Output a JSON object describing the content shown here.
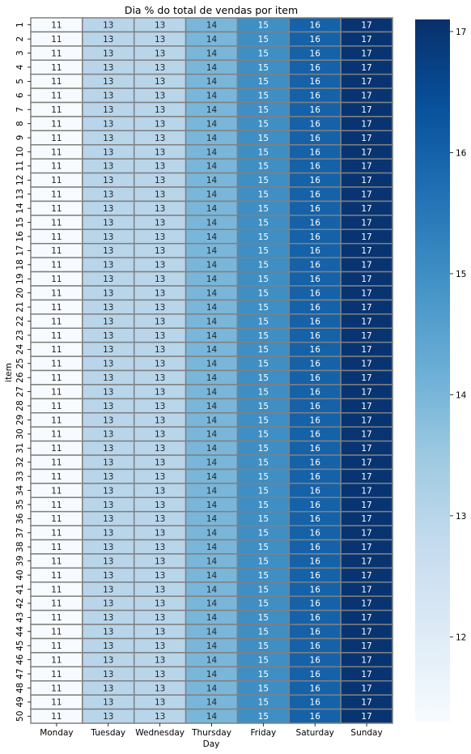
{
  "chart_data": {
    "type": "heatmap",
    "title": "Dia % do total de vendas por item",
    "xlabel": "Day",
    "ylabel": "item",
    "x_categories": [
      "Monday",
      "Tuesday",
      "Wednesday",
      "Thursday",
      "Friday",
      "Saturday",
      "Sunday"
    ],
    "y_categories": [
      "1",
      "2",
      "3",
      "4",
      "5",
      "6",
      "7",
      "8",
      "9",
      "10",
      "11",
      "12",
      "13",
      "14",
      "15",
      "16",
      "17",
      "18",
      "19",
      "20",
      "21",
      "22",
      "23",
      "24",
      "25",
      "26",
      "27",
      "28",
      "29",
      "30",
      "31",
      "32",
      "33",
      "34",
      "35",
      "36",
      "37",
      "38",
      "39",
      "40",
      "41",
      "42",
      "43",
      "44",
      "45",
      "46",
      "47",
      "48",
      "49",
      "50"
    ],
    "row_values": [
      11,
      13,
      13,
      14,
      15,
      16,
      17
    ],
    "colorscale": "Blues",
    "color_range": [
      11.3,
      17.1
    ],
    "colorbar_ticks": [
      12,
      13,
      14,
      15,
      16,
      17
    ],
    "cell_border_color": "#808080"
  }
}
